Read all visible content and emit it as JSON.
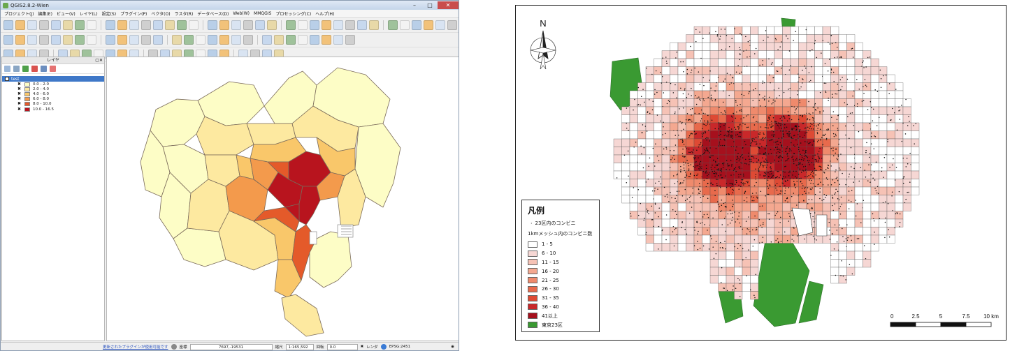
{
  "qgis": {
    "window_title": "QGIS2.8.2-Wien",
    "menu": [
      "プロジェクト(J)",
      "編集(E)",
      "ビュー(V)",
      "レイヤ(L)",
      "設定(S)",
      "プラグイン(P)",
      "ベクタ(O)",
      "ラスタ(R)",
      "データベース(D)",
      "Web(W)",
      "MMQGIS",
      "プロセッシング(C)",
      "ヘルプ(H)"
    ],
    "layers_panel": {
      "title": "レイヤ",
      "layer_name": "test",
      "classes": [
        {
          "label": "0.0 - 2.0",
          "color": "#fdfdc6"
        },
        {
          "label": "2.0 - 4.0",
          "color": "#fde9a0"
        },
        {
          "label": "4.0 - 6.0",
          "color": "#f9c76a"
        },
        {
          "label": "6.0 - 8.0",
          "color": "#f39a4c"
        },
        {
          "label": "8.0 - 10.0",
          "color": "#e45a2a"
        },
        {
          "label": "10.0 - 16.5",
          "color": "#b8141e"
        }
      ]
    },
    "statusbar": {
      "plugin_message": "更新されたプラグインが使用可能です",
      "coord_label": "座標",
      "coord_value": "7697,-19531",
      "scale_label": "縮尺",
      "scale_value": "1:165,592",
      "rotation_label": "回転",
      "rotation_value": "0.0",
      "render_label": "レンダ",
      "crs_label": "EPSG:2451"
    }
  },
  "print_map": {
    "north_label": "N",
    "legend": {
      "title": "凡例",
      "point_label": "23区内のコンビニ",
      "grid_label": "1kmメッシュ内のコンビニ数",
      "classes": [
        {
          "label": "1 - 5",
          "color": "#ffffff"
        },
        {
          "label": "6 - 10",
          "color": "#f6d7d4"
        },
        {
          "label": "11 - 15",
          "color": "#f6c2b5"
        },
        {
          "label": "16 - 20",
          "color": "#f4a890"
        },
        {
          "label": "21 - 25",
          "color": "#ef8a6c"
        },
        {
          "label": "26 - 30",
          "color": "#e86a4c"
        },
        {
          "label": "31 - 35",
          "color": "#de4a34"
        },
        {
          "label": "36 - 40",
          "color": "#c9282a"
        },
        {
          "label": "41以上",
          "color": "#a6101d"
        },
        {
          "label": "東京23区",
          "color": "#3a9a32"
        }
      ]
    },
    "scalebar": {
      "ticks": [
        "0",
        "2.5",
        "5",
        "7.5",
        "10 km"
      ]
    }
  }
}
